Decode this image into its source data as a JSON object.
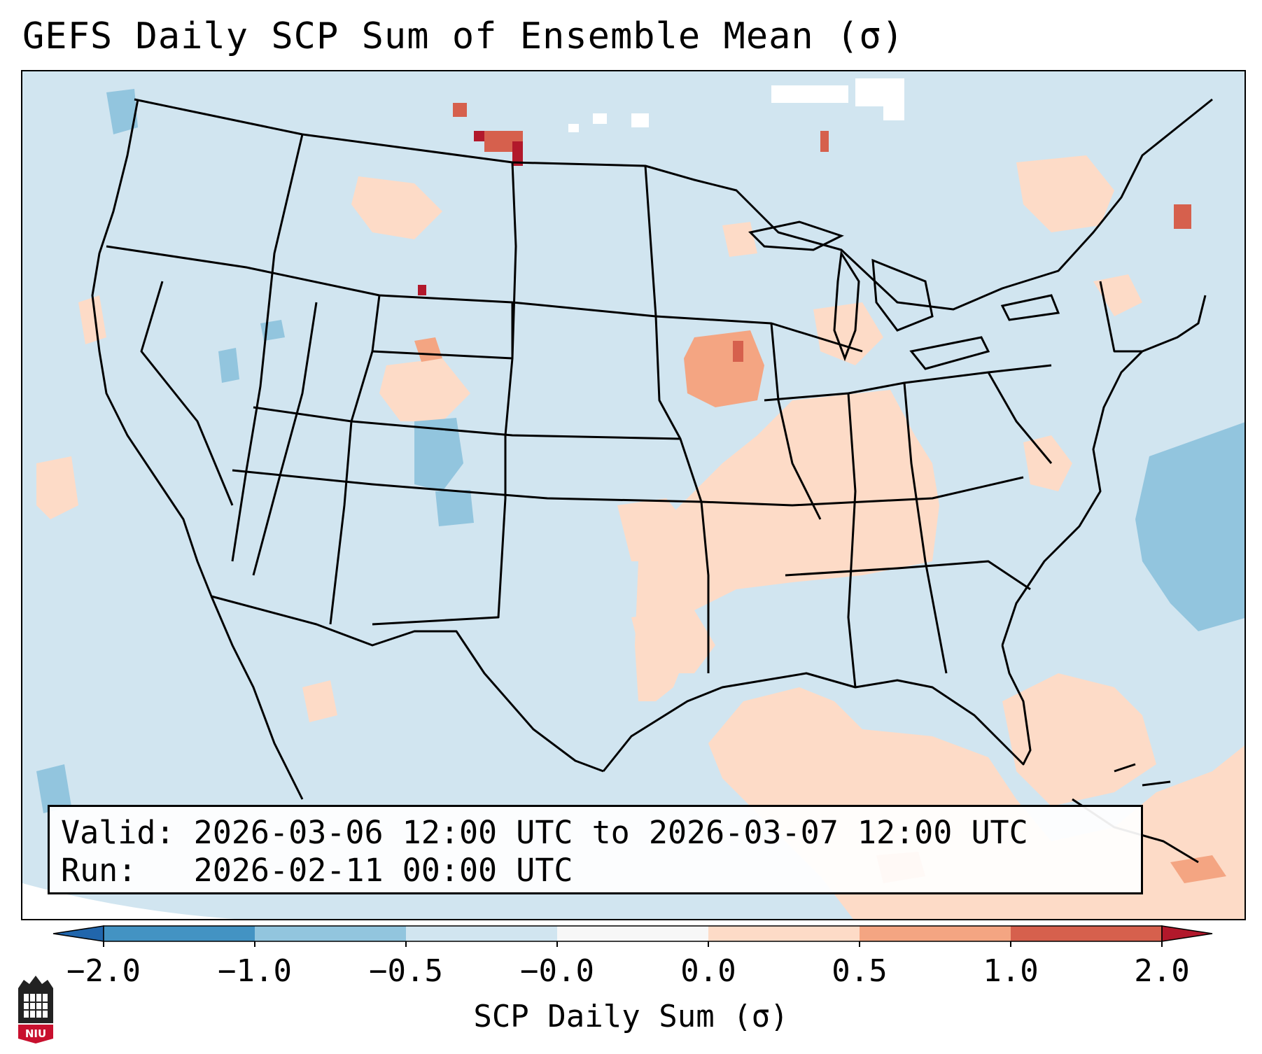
{
  "title": "GEFS Daily SCP Sum of Ensemble Mean (σ)",
  "valid_label": "Valid:",
  "valid_range": "2026-03-06 12:00 UTC to 2026-03-07 12:00 UTC",
  "run_label": "Run:",
  "run_time": "2026-02-11 00:00 UTC",
  "colorbar": {
    "label": "SCP Daily Sum (σ)",
    "ticks": [
      "−2.0",
      "−1.0",
      "−0.5",
      "−0.0",
      "0.0",
      "0.5",
      "1.0",
      "2.0"
    ],
    "bins": [
      {
        "range": "<-2.0",
        "color": "#2166ac"
      },
      {
        "range": "-2.0 to -1.0",
        "color": "#4393c3"
      },
      {
        "range": "-1.0 to -0.5",
        "color": "#92c5de"
      },
      {
        "range": "-0.5 to -0.0",
        "color": "#d1e5f0"
      },
      {
        "range": "-0.0 to 0.0",
        "color": "#f7f7f7"
      },
      {
        "range": "0.0 to 0.5",
        "color": "#fddbc7"
      },
      {
        "range": "0.5 to 1.0",
        "color": "#f4a582"
      },
      {
        "range": "1.0 to 2.0",
        "color": "#d6604d"
      },
      {
        "range": ">2.0",
        "color": "#b2182b"
      }
    ]
  },
  "logo": {
    "text": "NIU",
    "name": "Northern Illinois University"
  },
  "colors": {
    "background_field": "#d1e5f0",
    "outline": "#000000"
  }
}
